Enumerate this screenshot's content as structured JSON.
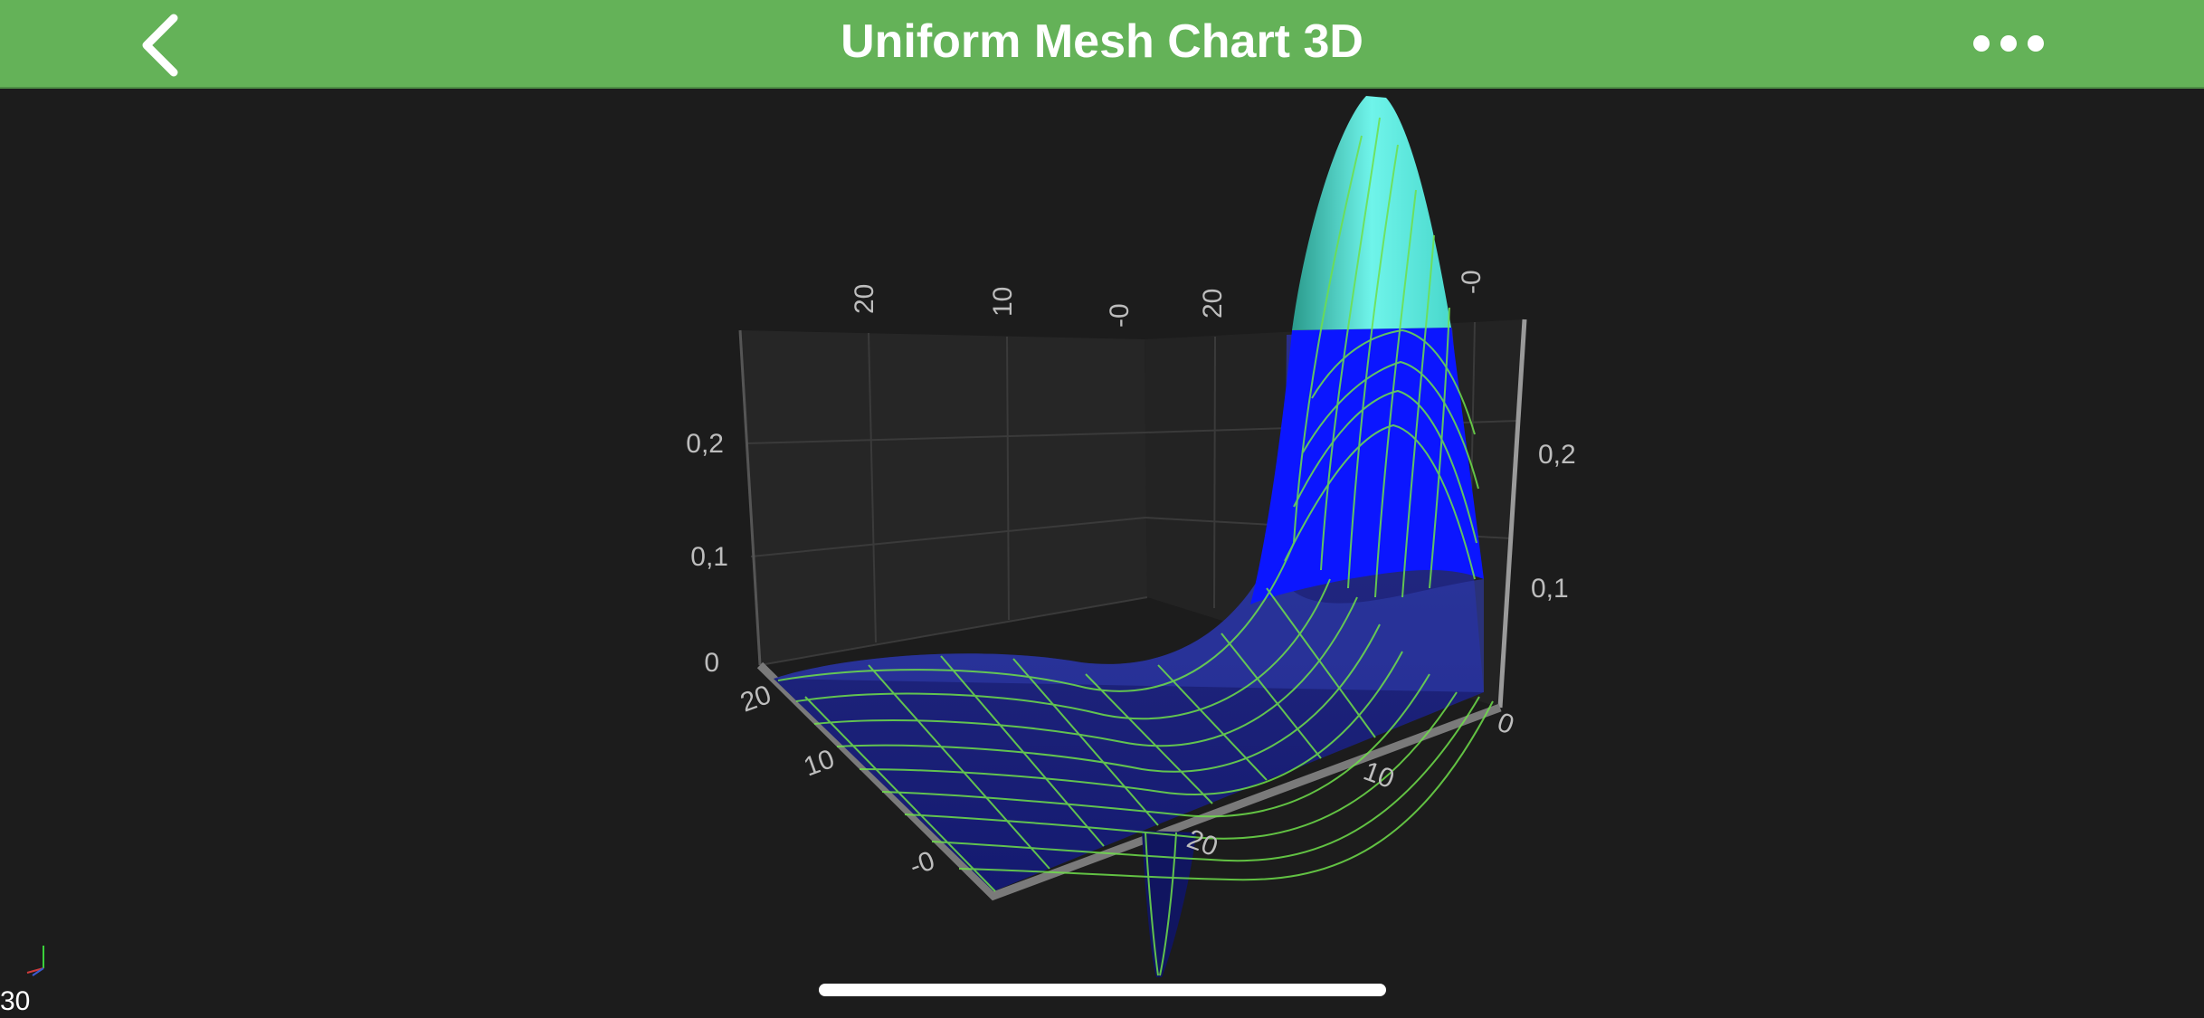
{
  "header": {
    "title": "Uniform Mesh Chart 3D",
    "back_icon": "chevron-left-icon",
    "more_icon": "ellipsis-icon"
  },
  "status": {
    "fps": "30"
  },
  "colors": {
    "navbar": "#64b258",
    "background": "#1c1c1c",
    "wireframe": "#6fe04a",
    "surface_low": "#1a1f8c",
    "surface_mid": "#0a14ff",
    "surface_high": "#5ff0e6"
  },
  "chart_data": {
    "type": "surface",
    "title": "Uniform Mesh Chart 3D",
    "x_ticks_front": [
      "-0",
      "10",
      "20"
    ],
    "z_ticks_right": [
      "0",
      "10",
      "20"
    ],
    "y_ticks_left": [
      "0",
      "0,1",
      "0,2"
    ],
    "y_ticks_right": [
      "0,1",
      "0,2"
    ],
    "back_ticks": [
      "20",
      "10",
      "-0",
      "20",
      "-0"
    ],
    "ylim": [
      0,
      0.3
    ],
    "xlim": [
      0,
      25
    ],
    "zlim": [
      0,
      25
    ],
    "color_bands": [
      {
        "from": 0,
        "to": 0.12,
        "color": "#1a1f8c"
      },
      {
        "from": 0.12,
        "to": 0.24,
        "color": "#0a14ff"
      },
      {
        "from": 0.24,
        "to": 0.3,
        "color": "#5ff0e6"
      }
    ],
    "grid": true
  }
}
